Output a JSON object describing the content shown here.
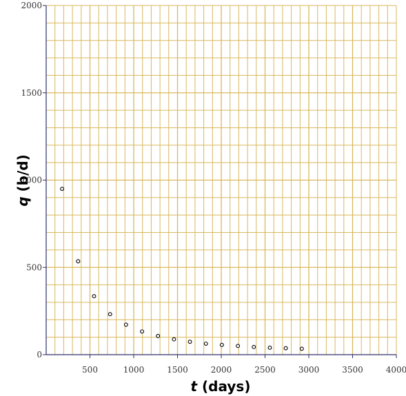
{
  "chart_data": {
    "type": "scatter",
    "title": "",
    "xlabel_var": "t",
    "xlabel_rest": " (days)",
    "ylabel_var": "q",
    "ylabel_rest": " (b/d)",
    "xlim": [
      0,
      4000
    ],
    "ylim": [
      0,
      2000
    ],
    "x_major_ticks": [
      500,
      1000,
      1500,
      2000,
      2500,
      3000,
      3500,
      4000
    ],
    "y_major_ticks": [
      0,
      500,
      1000,
      1500,
      2000
    ],
    "x_minor_step": 100,
    "y_minor_step": 100,
    "grid": true,
    "grid_color": "#d9b75a",
    "axis_color": "#2e2e6e",
    "marker_style": "hollow-circle",
    "marker_color": "#000000",
    "series": [
      {
        "x": [
          182,
          365,
          547,
          730,
          912,
          1095,
          1277,
          1460,
          1642,
          1825,
          2007,
          2190,
          2372,
          2555,
          2737,
          2920
        ],
        "y": [
          950,
          535,
          335,
          232,
          172,
          133,
          107,
          88,
          74,
          63,
          56,
          50,
          44,
          40,
          37,
          34
        ]
      }
    ]
  }
}
